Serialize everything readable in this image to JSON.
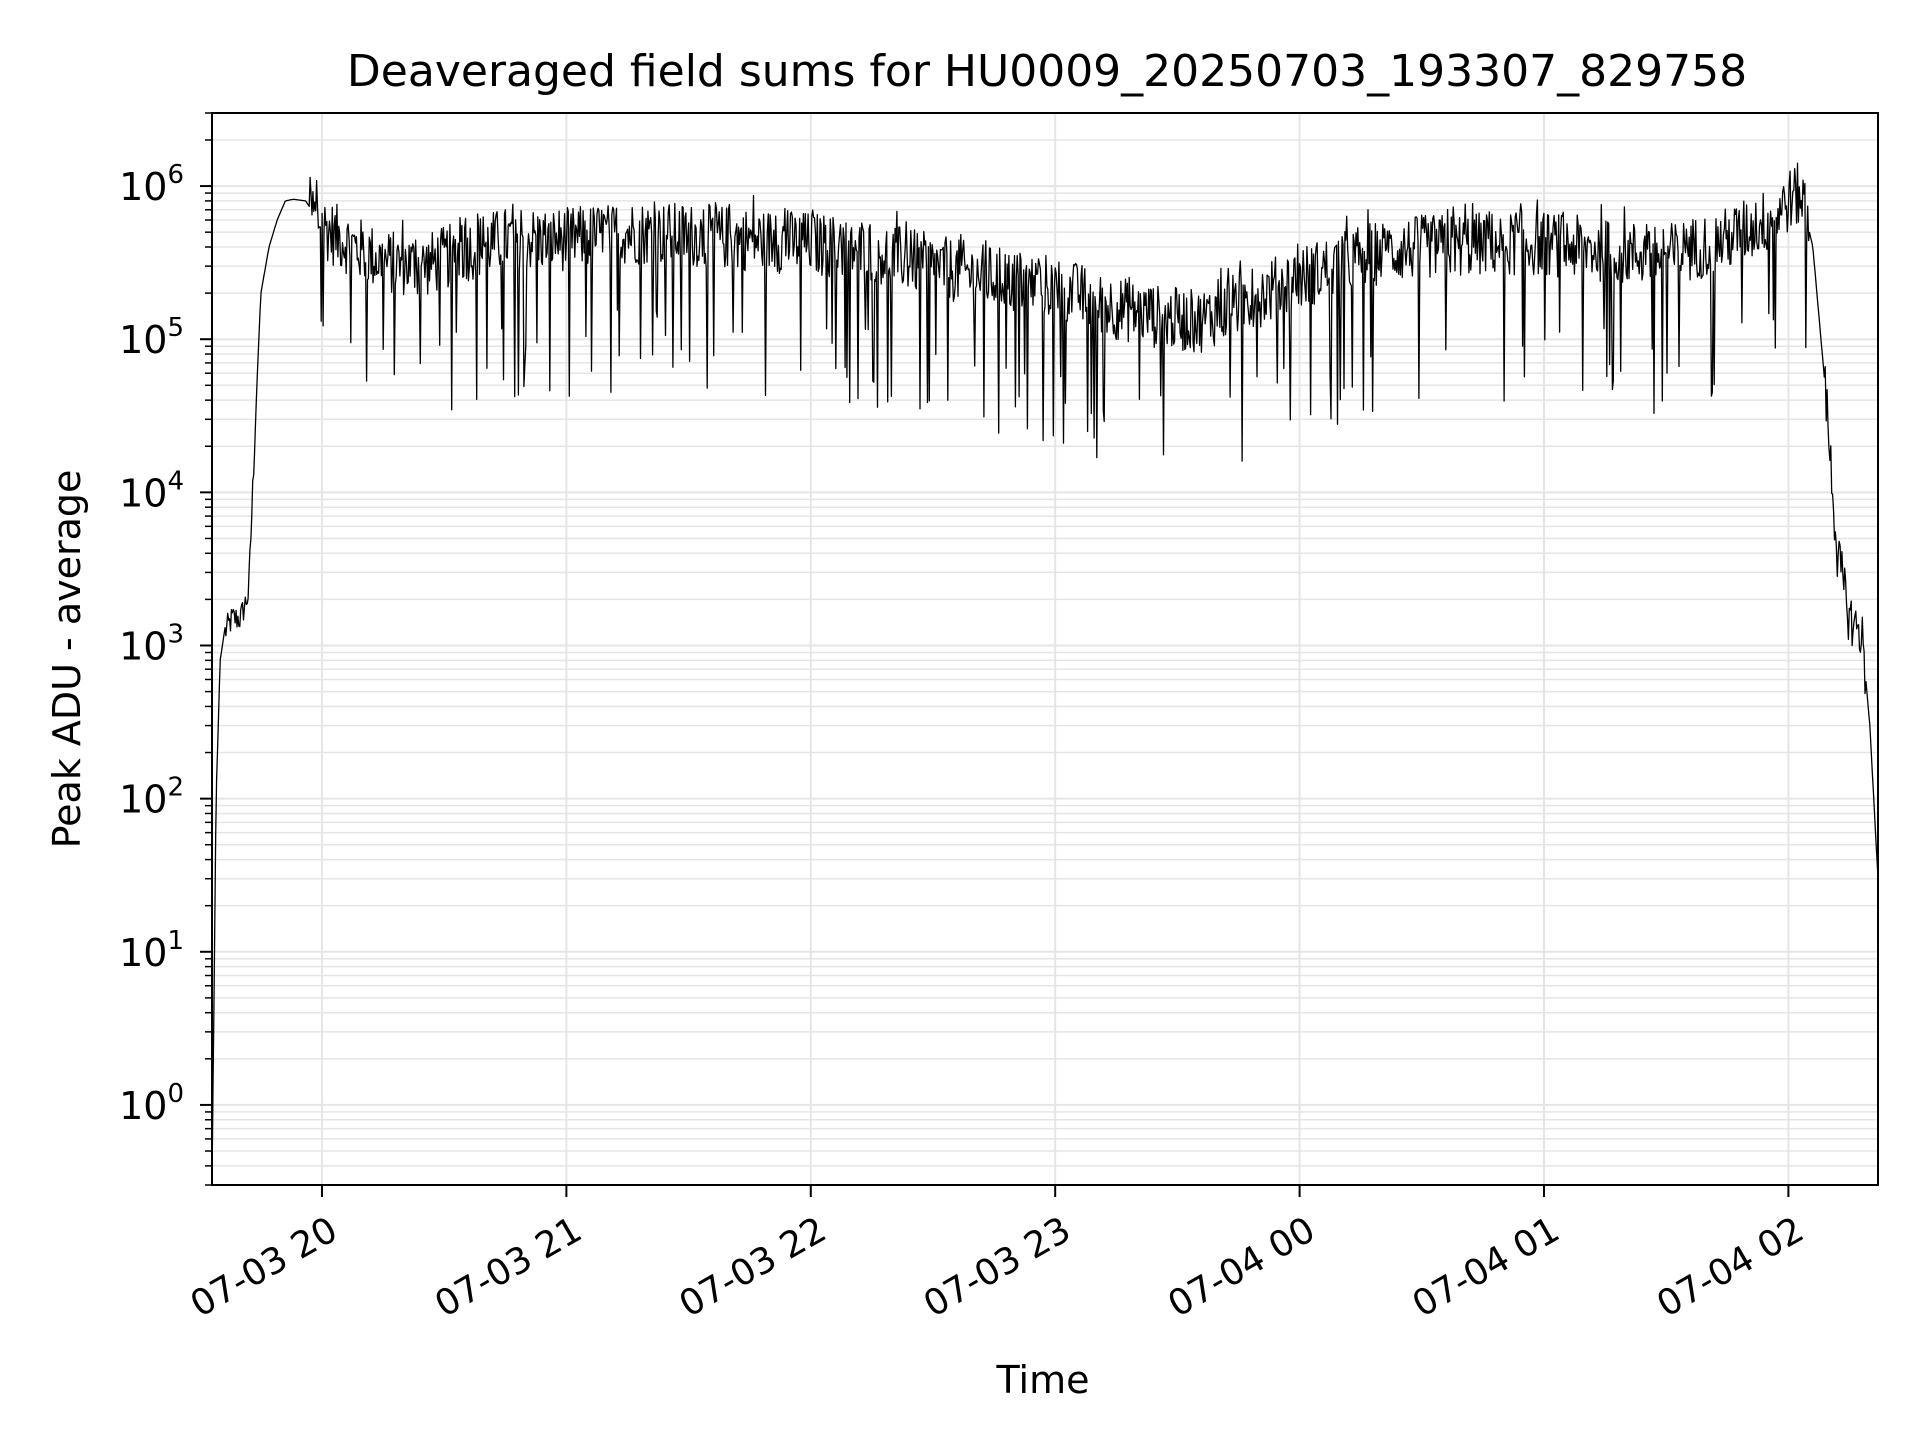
{
  "chart_data": {
    "type": "line",
    "title": "Deaveraged field sums for HU0009_20250703_193307_829758",
    "xlabel": "Time",
    "ylabel": "Peak ADU - average",
    "yscale": "log",
    "ylim": [
      0.3,
      3000000
    ],
    "xlim": [
      "2025-07-03 19:33",
      "2025-07-04 02:22"
    ],
    "grid": true,
    "line_color": "#000000",
    "grid_color": "#e5e5e5",
    "x_ticks": [
      {
        "value": "2025-07-03 20:00",
        "label": "07-03 20"
      },
      {
        "value": "2025-07-03 21:00",
        "label": "07-03 21"
      },
      {
        "value": "2025-07-03 22:00",
        "label": "07-03 22"
      },
      {
        "value": "2025-07-03 23:00",
        "label": "07-03 23"
      },
      {
        "value": "2025-07-04 00:00",
        "label": "07-04 00"
      },
      {
        "value": "2025-07-04 01:00",
        "label": "07-04 01"
      },
      {
        "value": "2025-07-04 02:00",
        "label": "07-04 02"
      }
    ],
    "y_ticks": [
      {
        "value": 1,
        "base": "10",
        "exp": "0"
      },
      {
        "value": 10,
        "base": "10",
        "exp": "1"
      },
      {
        "value": 100,
        "base": "10",
        "exp": "2"
      },
      {
        "value": 1000,
        "base": "10",
        "exp": "3"
      },
      {
        "value": 10000,
        "base": "10",
        "exp": "4"
      },
      {
        "value": 100000,
        "base": "10",
        "exp": "5"
      },
      {
        "value": 1000000,
        "base": "10",
        "exp": "6"
      }
    ],
    "series": [
      {
        "x": [
          "2025-07-03 19:33",
          "2025-07-03 19:34",
          "2025-07-03 19:35",
          "2025-07-03 19:36",
          "2025-07-03 19:38",
          "2025-07-03 19:40",
          "2025-07-03 19:42",
          "2025-07-03 19:44",
          "2025-07-03 19:45",
          "2025-07-03 19:47",
          "2025-07-03 19:49",
          "2025-07-03 19:51",
          "2025-07-03 19:53",
          "2025-07-03 19:56",
          "2025-07-03 19:59",
          "2025-07-03 20:02",
          "2025-07-03 20:08",
          "2025-07-03 20:15",
          "2025-07-03 20:25",
          "2025-07-03 20:35",
          "2025-07-03 20:45",
          "2025-07-03 21:00",
          "2025-07-03 21:15",
          "2025-07-03 21:30",
          "2025-07-03 21:45",
          "2025-07-03 22:00",
          "2025-07-03 22:15",
          "2025-07-03 22:30",
          "2025-07-03 22:45",
          "2025-07-03 23:00",
          "2025-07-03 23:15",
          "2025-07-03 23:25",
          "2025-07-03 23:35",
          "2025-07-03 23:45",
          "2025-07-04 00:00",
          "2025-07-04 00:15",
          "2025-07-04 00:30",
          "2025-07-04 00:45",
          "2025-07-04 01:00",
          "2025-07-04 01:15",
          "2025-07-04 01:30",
          "2025-07-04 01:45",
          "2025-07-04 01:55",
          "2025-07-04 02:00",
          "2025-07-04 02:03",
          "2025-07-04 02:06",
          "2025-07-04 02:09",
          "2025-07-04 02:12",
          "2025-07-04 02:15",
          "2025-07-04 02:18",
          "2025-07-04 02:20",
          "2025-07-04 02:22"
        ],
        "y": [
          0.3,
          100,
          800,
          1200,
          1500,
          1500,
          2200,
          50000,
          200000,
          400000,
          600000,
          800000,
          820000,
          800000,
          600000,
          500000,
          400000,
          320000,
          300000,
          380000,
          450000,
          450000,
          500000,
          480000,
          450000,
          420000,
          380000,
          300000,
          250000,
          220000,
          160000,
          140000,
          130000,
          170000,
          250000,
          350000,
          400000,
          420000,
          420000,
          380000,
          350000,
          450000,
          600000,
          800000,
          900000,
          400000,
          50000,
          4000,
          1500,
          1200,
          300,
          30
        ]
      }
    ]
  }
}
